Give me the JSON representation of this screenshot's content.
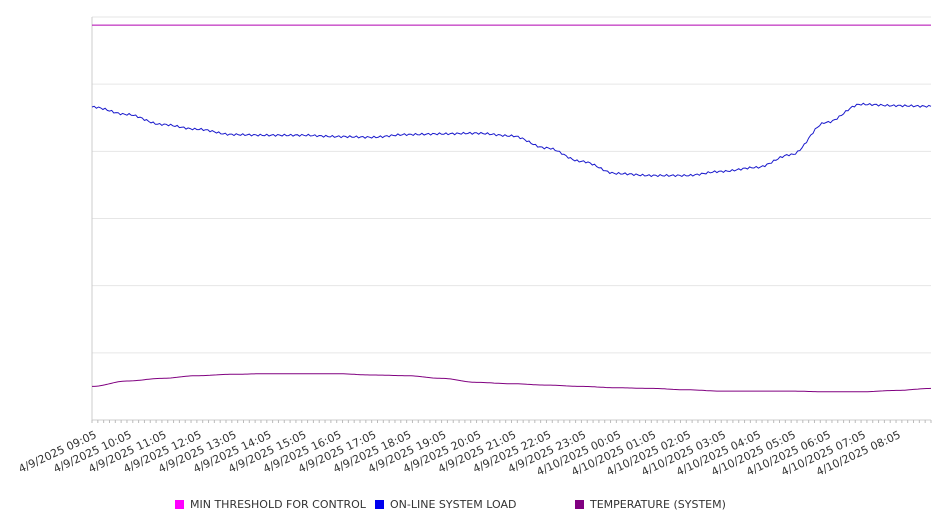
{
  "chart_data": {
    "type": "line",
    "title": "",
    "xlabel": "",
    "ylabel": "",
    "ylim": [
      0,
      6
    ],
    "grid": true,
    "legend_position": "bottom",
    "x_tick_labels": [
      "4/9/2025 09:05",
      "4/9/2025 10:05",
      "4/9/2025 11:05",
      "4/9/2025 12:05",
      "4/9/2025 13:05",
      "4/9/2025 14:05",
      "4/9/2025 15:05",
      "4/9/2025 16:05",
      "4/9/2025 17:05",
      "4/9/2025 18:05",
      "4/9/2025 19:05",
      "4/9/2025 20:05",
      "4/9/2025 21:05",
      "4/9/2025 22:05",
      "4/9/2025 23:05",
      "4/10/2025 00:05",
      "4/10/2025 01:05",
      "4/10/2025 02:05",
      "4/10/2025 03:05",
      "4/10/2025 04:05",
      "4/10/2025 05:05",
      "4/10/2025 06:05",
      "4/10/2025 07:05",
      "4/10/2025 08:05"
    ],
    "series": [
      {
        "name": "MIN THRESHOLD FOR CONTROL",
        "color": "#b000b0",
        "legend_color": "#ff00ff",
        "values": [
          5.88,
          5.88,
          5.88,
          5.88,
          5.88,
          5.88,
          5.88,
          5.88,
          5.88,
          5.88,
          5.88,
          5.88,
          5.88,
          5.88,
          5.88,
          5.88,
          5.88,
          5.88,
          5.88,
          5.88,
          5.88,
          5.88,
          5.88,
          5.88,
          5.88
        ]
      },
      {
        "name": "ON-LINE SYSTEM LOAD",
        "color": "#1a1acc",
        "legend_color": "#0000ee",
        "values": [
          4.66,
          4.55,
          4.4,
          4.33,
          4.25,
          4.24,
          4.24,
          4.22,
          4.21,
          4.25,
          4.26,
          4.27,
          4.23,
          4.05,
          3.85,
          3.67,
          3.64,
          3.64,
          3.7,
          3.76,
          3.95,
          4.43,
          4.7,
          4.68,
          4.67
        ]
      },
      {
        "name": "TEMPERATURE (SYSTEM)",
        "color": "#800080",
        "legend_color": "#800080",
        "values": [
          0.5,
          0.58,
          0.62,
          0.66,
          0.68,
          0.69,
          0.69,
          0.69,
          0.67,
          0.66,
          0.62,
          0.56,
          0.54,
          0.52,
          0.5,
          0.48,
          0.47,
          0.45,
          0.43,
          0.43,
          0.43,
          0.42,
          0.42,
          0.44,
          0.47
        ]
      }
    ]
  }
}
